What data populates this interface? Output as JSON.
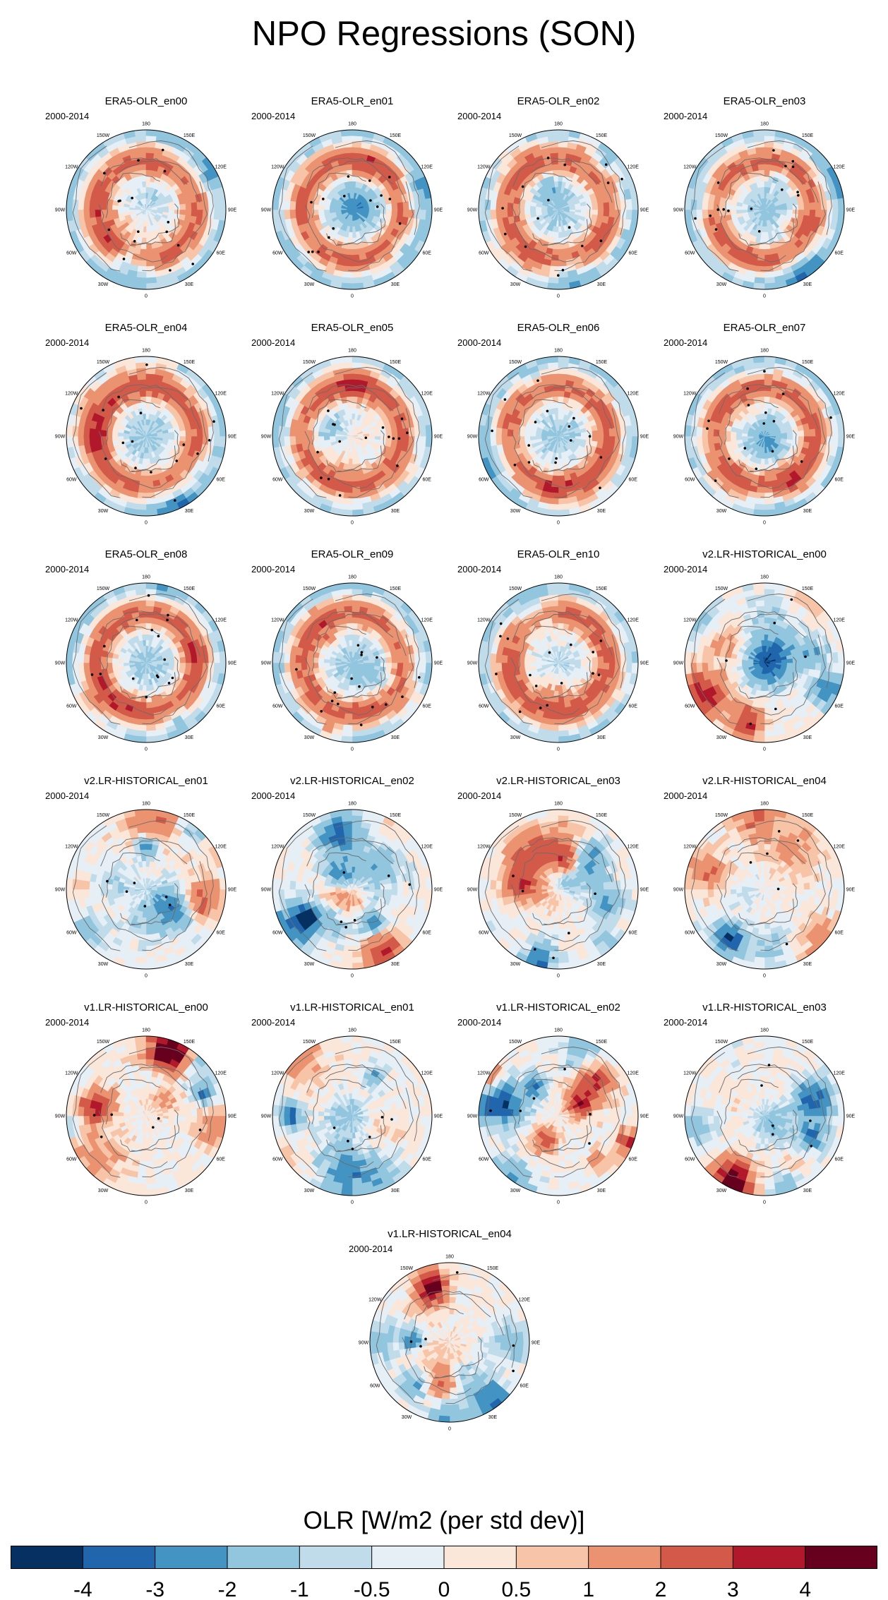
{
  "chart_data": {
    "type": "polar_contour_maps",
    "title": "NPO Regressions (SON)",
    "period": "2000-2014",
    "variable": "OLR",
    "colorbar": {
      "title": "OLR [W/m2 (per std dev)]",
      "levels": [
        "-4",
        "-3",
        "-2",
        "-1",
        "-0.5",
        "0",
        "0.5",
        "1",
        "2",
        "3",
        "4"
      ],
      "colors": [
        "#053061",
        "#2166ac",
        "#4393c3",
        "#92c5de",
        "#c0dceb",
        "#e6eff6",
        "#fbe6da",
        "#f8c4a7",
        "#eb9271",
        "#d35a49",
        "#b2182b",
        "#67001f"
      ]
    },
    "longitude_labels": [
      "180",
      "150E",
      "120E",
      "90E",
      "60E",
      "30E",
      "0",
      "30W",
      "60W",
      "90W",
      "120W",
      "150W"
    ],
    "panels": [
      {
        "title": "ERA5-OLR_en00",
        "pattern": "era5"
      },
      {
        "title": "ERA5-OLR_en01",
        "pattern": "era5"
      },
      {
        "title": "ERA5-OLR_en02",
        "pattern": "era5"
      },
      {
        "title": "ERA5-OLR_en03",
        "pattern": "era5"
      },
      {
        "title": "ERA5-OLR_en04",
        "pattern": "era5"
      },
      {
        "title": "ERA5-OLR_en05",
        "pattern": "era5"
      },
      {
        "title": "ERA5-OLR_en06",
        "pattern": "era5"
      },
      {
        "title": "ERA5-OLR_en07",
        "pattern": "era5"
      },
      {
        "title": "ERA5-OLR_en08",
        "pattern": "era5"
      },
      {
        "title": "ERA5-OLR_en09",
        "pattern": "era5"
      },
      {
        "title": "ERA5-OLR_en10",
        "pattern": "era5"
      },
      {
        "title": "v2.LR-HISTORICAL_en00",
        "pattern": "model"
      },
      {
        "title": "v2.LR-HISTORICAL_en01",
        "pattern": "model"
      },
      {
        "title": "v2.LR-HISTORICAL_en02",
        "pattern": "model"
      },
      {
        "title": "v2.LR-HISTORICAL_en03",
        "pattern": "model"
      },
      {
        "title": "v2.LR-HISTORICAL_en04",
        "pattern": "model"
      },
      {
        "title": "v1.LR-HISTORICAL_en00",
        "pattern": "model"
      },
      {
        "title": "v1.LR-HISTORICAL_en01",
        "pattern": "model"
      },
      {
        "title": "v1.LR-HISTORICAL_en02",
        "pattern": "model"
      },
      {
        "title": "v1.LR-HISTORICAL_en03",
        "pattern": "model"
      },
      {
        "title": "v1.LR-HISTORICAL_en04",
        "pattern": "model"
      }
    ]
  }
}
